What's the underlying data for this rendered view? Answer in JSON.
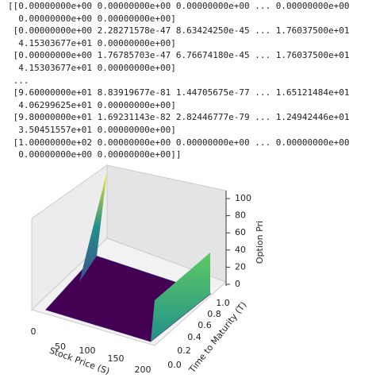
{
  "output": {
    "lines": [
      "[[0.00000000e+00 0.00000000e+00 0.00000000e+00 ... 0.00000000e+00",
      "  0.00000000e+00 0.00000000e+00]",
      " [0.00000000e+00 2.28271578e-47 8.63424250e-45 ... 1.76037500e+01",
      "  4.15303677e+01 0.00000000e+00]",
      " [0.00000000e+00 1.76785703e-47 6.76674180e-45 ... 1.76037500e+01",
      "  4.15303677e+01 0.00000000e+00]",
      " ...",
      " [9.60000000e+01 8.83919677e-81 1.44705675e-77 ... 1.65121484e+01",
      "  4.06299625e+01 0.00000000e+00]",
      " [9.80000000e+01 1.69231143e-82 2.82446777e-79 ... 1.24942446e+01",
      "  3.50451557e+01 0.00000000e+00]",
      " [1.00000000e+02 0.00000000e+00 0.00000000e+00 ... 0.00000000e+00",
      "  0.00000000e+00 0.00000000e+00]]"
    ]
  },
  "plot": {
    "x_label": "Stock Price (S)",
    "y_label": "Time to Maturity (T)",
    "z_label": "Option Pri",
    "x_ticks": [
      "0",
      "50",
      "100",
      "150",
      "200"
    ],
    "y_ticks": [
      "0.0",
      "0.2",
      "0.4",
      "0.6",
      "0.8",
      "1.0"
    ],
    "z_ticks": [
      "0",
      "20",
      "40",
      "60",
      "80",
      "100"
    ]
  }
}
